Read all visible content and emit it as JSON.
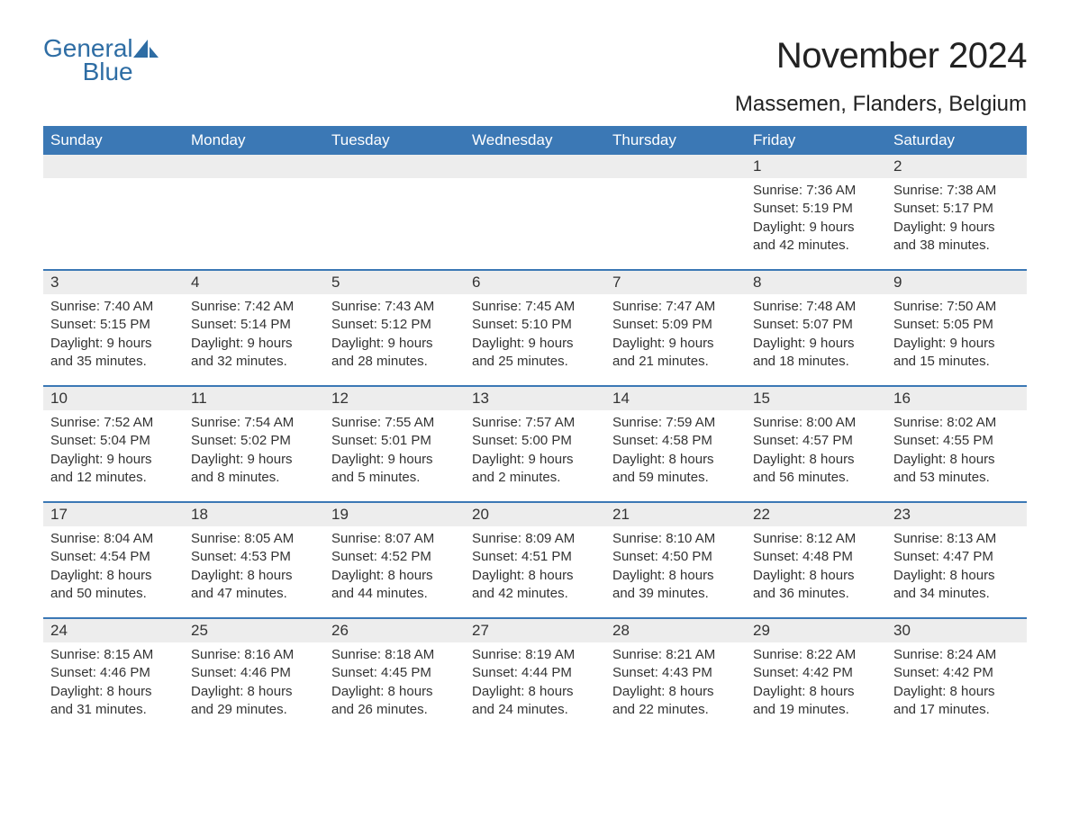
{
  "brand": {
    "general": "General",
    "blue": "Blue"
  },
  "title": "November 2024",
  "location": "Massemen, Flanders, Belgium",
  "colors": {
    "header_bg": "#3b78b5",
    "header_fg": "#ffffff",
    "daynum_bg": "#ededed",
    "text": "#333333",
    "brand": "#2e6da4",
    "rule": "#3b78b5",
    "page_bg": "#ffffff"
  },
  "labels": {
    "sunrise": "Sunrise",
    "sunset": "Sunset",
    "daylight": "Daylight"
  },
  "weekdays": [
    "Sunday",
    "Monday",
    "Tuesday",
    "Wednesday",
    "Thursday",
    "Friday",
    "Saturday"
  ],
  "weeks": [
    [
      null,
      null,
      null,
      null,
      null,
      {
        "day": 1,
        "sunrise": "7:36 AM",
        "sunset": "5:19 PM",
        "daylight_h": 9,
        "daylight_m": 42
      },
      {
        "day": 2,
        "sunrise": "7:38 AM",
        "sunset": "5:17 PM",
        "daylight_h": 9,
        "daylight_m": 38
      }
    ],
    [
      {
        "day": 3,
        "sunrise": "7:40 AM",
        "sunset": "5:15 PM",
        "daylight_h": 9,
        "daylight_m": 35
      },
      {
        "day": 4,
        "sunrise": "7:42 AM",
        "sunset": "5:14 PM",
        "daylight_h": 9,
        "daylight_m": 32
      },
      {
        "day": 5,
        "sunrise": "7:43 AM",
        "sunset": "5:12 PM",
        "daylight_h": 9,
        "daylight_m": 28
      },
      {
        "day": 6,
        "sunrise": "7:45 AM",
        "sunset": "5:10 PM",
        "daylight_h": 9,
        "daylight_m": 25
      },
      {
        "day": 7,
        "sunrise": "7:47 AM",
        "sunset": "5:09 PM",
        "daylight_h": 9,
        "daylight_m": 21
      },
      {
        "day": 8,
        "sunrise": "7:48 AM",
        "sunset": "5:07 PM",
        "daylight_h": 9,
        "daylight_m": 18
      },
      {
        "day": 9,
        "sunrise": "7:50 AM",
        "sunset": "5:05 PM",
        "daylight_h": 9,
        "daylight_m": 15
      }
    ],
    [
      {
        "day": 10,
        "sunrise": "7:52 AM",
        "sunset": "5:04 PM",
        "daylight_h": 9,
        "daylight_m": 12
      },
      {
        "day": 11,
        "sunrise": "7:54 AM",
        "sunset": "5:02 PM",
        "daylight_h": 9,
        "daylight_m": 8
      },
      {
        "day": 12,
        "sunrise": "7:55 AM",
        "sunset": "5:01 PM",
        "daylight_h": 9,
        "daylight_m": 5
      },
      {
        "day": 13,
        "sunrise": "7:57 AM",
        "sunset": "5:00 PM",
        "daylight_h": 9,
        "daylight_m": 2
      },
      {
        "day": 14,
        "sunrise": "7:59 AM",
        "sunset": "4:58 PM",
        "daylight_h": 8,
        "daylight_m": 59
      },
      {
        "day": 15,
        "sunrise": "8:00 AM",
        "sunset": "4:57 PM",
        "daylight_h": 8,
        "daylight_m": 56
      },
      {
        "day": 16,
        "sunrise": "8:02 AM",
        "sunset": "4:55 PM",
        "daylight_h": 8,
        "daylight_m": 53
      }
    ],
    [
      {
        "day": 17,
        "sunrise": "8:04 AM",
        "sunset": "4:54 PM",
        "daylight_h": 8,
        "daylight_m": 50
      },
      {
        "day": 18,
        "sunrise": "8:05 AM",
        "sunset": "4:53 PM",
        "daylight_h": 8,
        "daylight_m": 47
      },
      {
        "day": 19,
        "sunrise": "8:07 AM",
        "sunset": "4:52 PM",
        "daylight_h": 8,
        "daylight_m": 44
      },
      {
        "day": 20,
        "sunrise": "8:09 AM",
        "sunset": "4:51 PM",
        "daylight_h": 8,
        "daylight_m": 42
      },
      {
        "day": 21,
        "sunrise": "8:10 AM",
        "sunset": "4:50 PM",
        "daylight_h": 8,
        "daylight_m": 39
      },
      {
        "day": 22,
        "sunrise": "8:12 AM",
        "sunset": "4:48 PM",
        "daylight_h": 8,
        "daylight_m": 36
      },
      {
        "day": 23,
        "sunrise": "8:13 AM",
        "sunset": "4:47 PM",
        "daylight_h": 8,
        "daylight_m": 34
      }
    ],
    [
      {
        "day": 24,
        "sunrise": "8:15 AM",
        "sunset": "4:46 PM",
        "daylight_h": 8,
        "daylight_m": 31
      },
      {
        "day": 25,
        "sunrise": "8:16 AM",
        "sunset": "4:46 PM",
        "daylight_h": 8,
        "daylight_m": 29
      },
      {
        "day": 26,
        "sunrise": "8:18 AM",
        "sunset": "4:45 PM",
        "daylight_h": 8,
        "daylight_m": 26
      },
      {
        "day": 27,
        "sunrise": "8:19 AM",
        "sunset": "4:44 PM",
        "daylight_h": 8,
        "daylight_m": 24
      },
      {
        "day": 28,
        "sunrise": "8:21 AM",
        "sunset": "4:43 PM",
        "daylight_h": 8,
        "daylight_m": 22
      },
      {
        "day": 29,
        "sunrise": "8:22 AM",
        "sunset": "4:42 PM",
        "daylight_h": 8,
        "daylight_m": 19
      },
      {
        "day": 30,
        "sunrise": "8:24 AM",
        "sunset": "4:42 PM",
        "daylight_h": 8,
        "daylight_m": 17
      }
    ]
  ]
}
